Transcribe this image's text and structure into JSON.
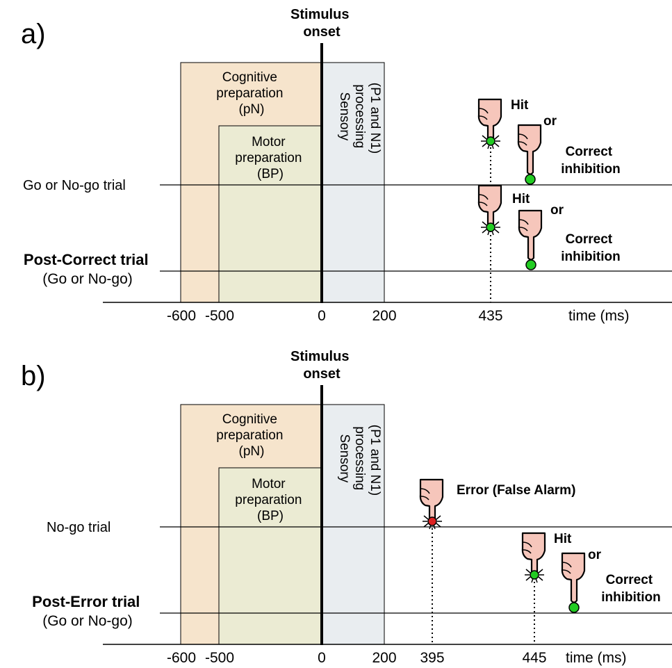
{
  "panels": [
    {
      "label": "a)",
      "stimulus_label": [
        "Stimulus",
        "onset"
      ],
      "cognitive_label": [
        "Cognitive",
        "preparation",
        "(pN)"
      ],
      "motor_label": [
        "Motor",
        "preparation",
        "(BP)"
      ],
      "sensory_label": [
        "Sensory",
        "processing",
        "(P1 and N1)"
      ],
      "trial1_label": "Go or No-go trial",
      "trial2_label": [
        "Post-Correct trial",
        "(Go or No-go)"
      ],
      "time_ticks": [
        "-600",
        "-500",
        "0",
        "200",
        "435"
      ],
      "time_unit": "time (ms)",
      "responses_trial1": {
        "hit": "Hit",
        "or": "or",
        "inhibition": [
          "Correct",
          "inhibition"
        ]
      },
      "responses_trial2": {
        "hit": "Hit",
        "or": "or",
        "inhibition": [
          "Correct",
          "inhibition"
        ]
      }
    },
    {
      "label": "b)",
      "stimulus_label": [
        "Stimulus",
        "onset"
      ],
      "cognitive_label": [
        "Cognitive",
        "preparation",
        "(pN)"
      ],
      "motor_label": [
        "Motor",
        "preparation",
        "(BP)"
      ],
      "sensory_label": [
        "Sensory",
        "processing",
        "(P1 and N1)"
      ],
      "trial1_label": "No-go trial",
      "trial2_label": [
        "Post-Error trial",
        "(Go or No-go)"
      ],
      "time_ticks": [
        "-600",
        "-500",
        "0",
        "200",
        "395",
        "445"
      ],
      "time_unit": "time (ms)",
      "error_label": "Error (False Alarm)",
      "responses_trial2": {
        "hit": "Hit",
        "or": "or",
        "inhibition": [
          "Correct",
          "inhibition"
        ]
      }
    }
  ],
  "colors": {
    "cognitive": "#f6e4cc",
    "motor": "#ebebd3",
    "sensory": "#e9edf0",
    "hand": "#f6c6bb",
    "correct_button": "#22cc22",
    "error_button": "#dd2222"
  }
}
